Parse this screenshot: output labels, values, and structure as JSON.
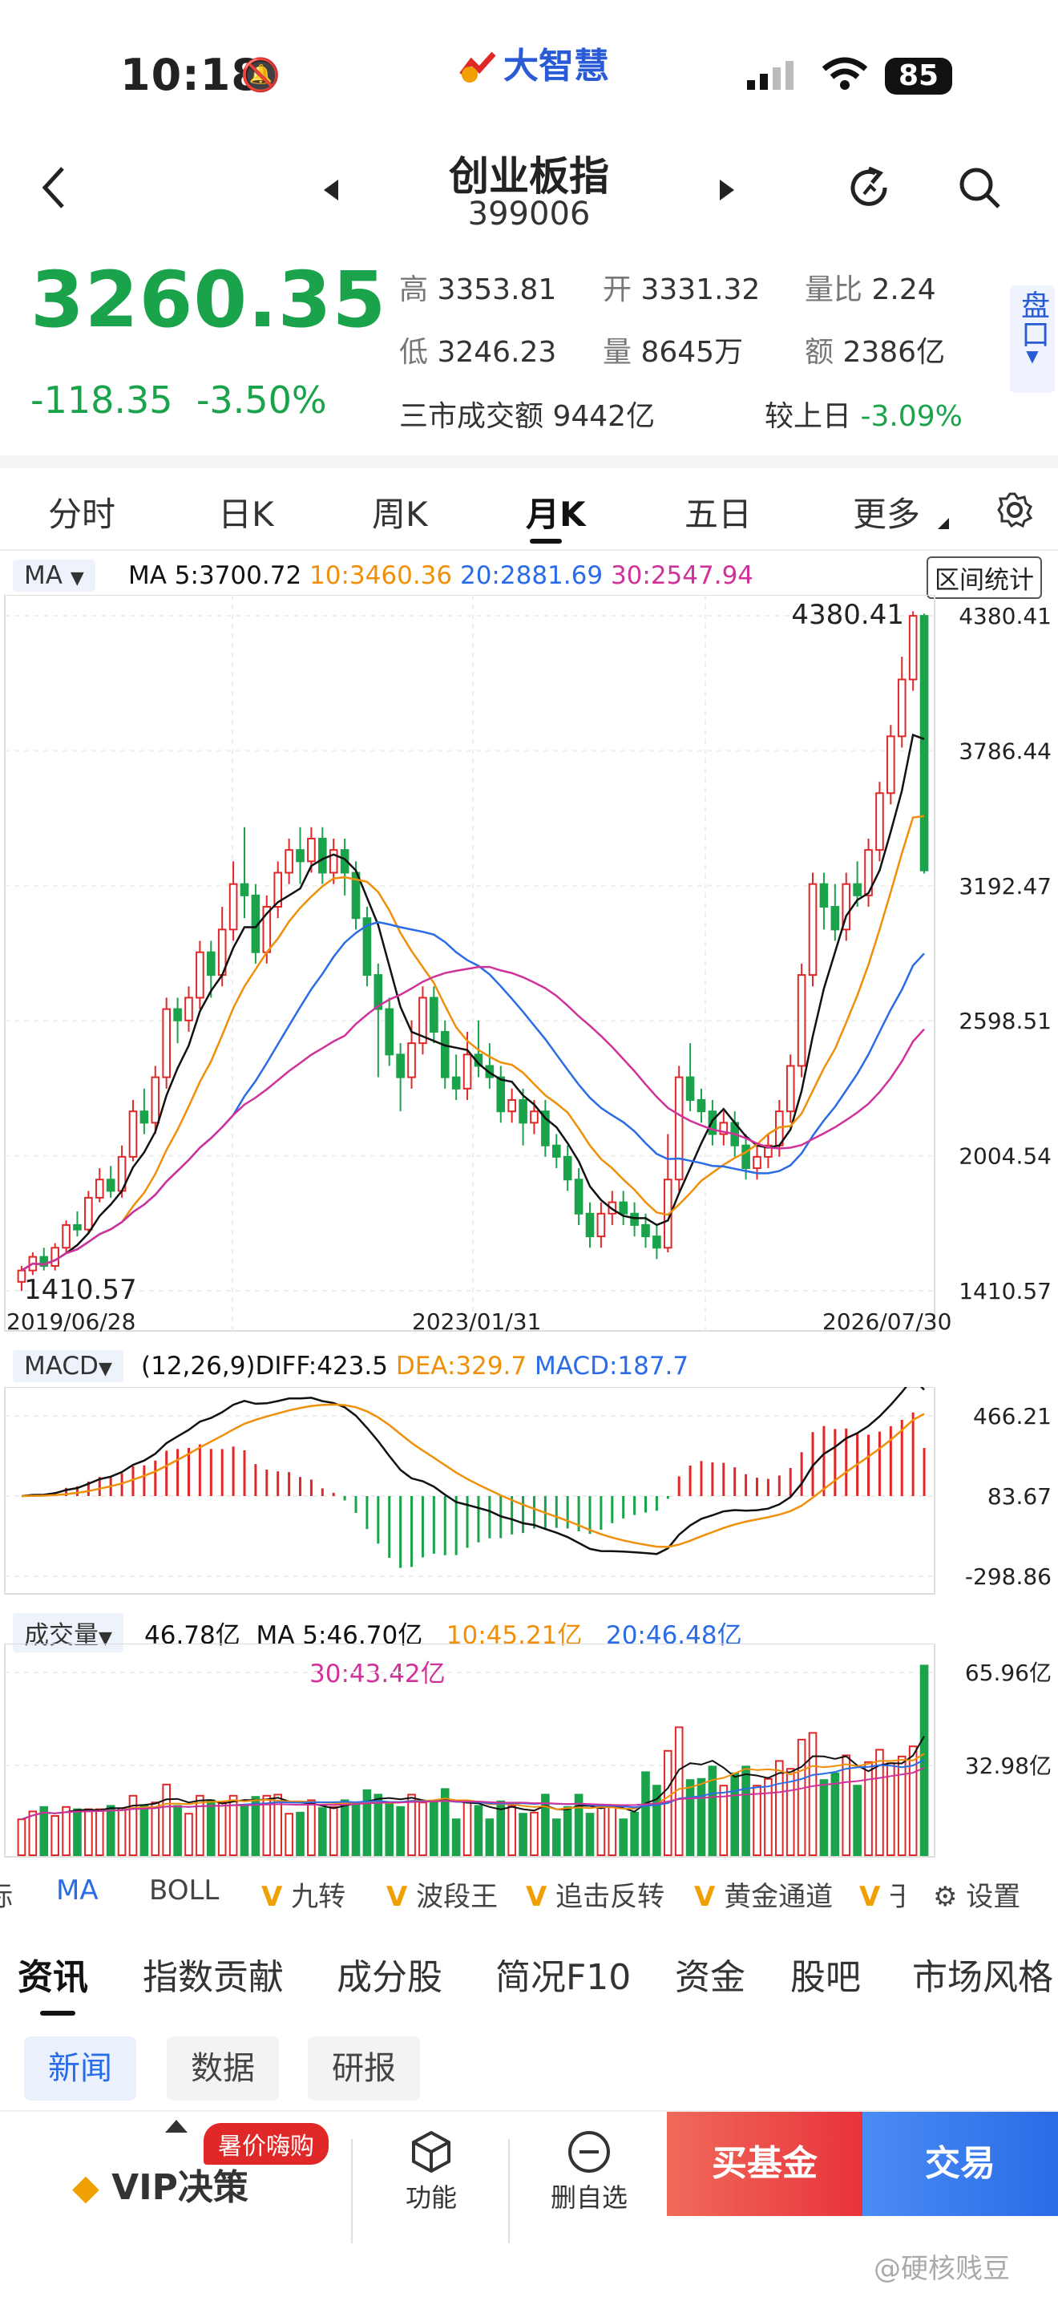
{
  "status": {
    "time": "10:18",
    "app_logo": "大智慧",
    "battery": "85"
  },
  "header": {
    "title": "创业板指",
    "code": "399006"
  },
  "quote": {
    "price": "3260.35",
    "change": "-118.35",
    "change_pct": "-3.50%",
    "stats": [
      {
        "label": "高",
        "value": "3353.81"
      },
      {
        "label": "开",
        "value": "3331.32"
      },
      {
        "label": "量比",
        "value": "2.24"
      },
      {
        "label": "低",
        "value": "3246.23"
      },
      {
        "label": "量",
        "value": "8645万"
      },
      {
        "label": "额",
        "value": "2386亿"
      }
    ],
    "market_turnover_label": "三市成交额",
    "market_turnover_value": "9442亿",
    "vs_yesterday_label": "较上日",
    "vs_yesterday_value": "-3.09%",
    "pankou_label": "盘口"
  },
  "chart_tabs": [
    "分时",
    "日K",
    "周K",
    "月K",
    "五日",
    "更多"
  ],
  "active_tab": "月K",
  "ma_legend": {
    "selector": "MA",
    "ma5": "MA 5:3700.72",
    "ma10": "10:3460.36",
    "ma20": "20:2881.69",
    "ma30": "30:2547.94",
    "stats_button": "区间统计"
  },
  "colors": {
    "up": "#e02828",
    "down": "#1aa34a",
    "ma5": "#111111",
    "ma10": "#f0900a",
    "ma20": "#2a6be6",
    "ma30": "#d0329a"
  },
  "price_axis": [
    "4380.41",
    "3786.44",
    "3192.47",
    "2598.51",
    "2004.54",
    "1410.57"
  ],
  "max_label": "4380.41",
  "min_label": "1410.57",
  "date_axis": [
    "2019/06/28",
    "2023/01/31",
    "2026/07/30"
  ],
  "macd": {
    "selector": "MACD",
    "params": "(12,26,9)DIFF:423.5",
    "dea": "DEA:329.7",
    "macd": "MACD:187.7",
    "axis": [
      "466.21",
      "83.67",
      "-298.86"
    ]
  },
  "volume": {
    "selector": "成交量",
    "value": "46.78亿",
    "ma5": "MA 5:46.70亿",
    "ma10": "10:45.21亿",
    "ma20": "20:46.48亿",
    "ma30": "30:43.42亿",
    "axis": [
      "65.96亿",
      "32.98亿"
    ]
  },
  "chart_data": {
    "type": "candlestick",
    "x_range": [
      "2019/06/28",
      "2026/07/30"
    ],
    "y_range": [
      1410.57,
      4380.41
    ],
    "candles": [
      [
        1450,
        1500,
        1410,
        1520
      ],
      [
        1500,
        1560,
        1480,
        1580
      ],
      [
        1560,
        1520,
        1500,
        1600
      ],
      [
        1520,
        1600,
        1500,
        1620
      ],
      [
        1600,
        1700,
        1580,
        1720
      ],
      [
        1700,
        1680,
        1650,
        1760
      ],
      [
        1680,
        1820,
        1660,
        1850
      ],
      [
        1820,
        1900,
        1800,
        1950
      ],
      [
        1900,
        1850,
        1820,
        1960
      ],
      [
        1850,
        2000,
        1820,
        2050
      ],
      [
        2000,
        2200,
        1980,
        2250
      ],
      [
        2200,
        2150,
        2100,
        2300
      ],
      [
        2150,
        2350,
        2100,
        2400
      ],
      [
        2350,
        2650,
        2300,
        2700
      ],
      [
        2650,
        2600,
        2500,
        2700
      ],
      [
        2600,
        2700,
        2550,
        2750
      ],
      [
        2700,
        2900,
        2650,
        2950
      ],
      [
        2900,
        2800,
        2700,
        2950
      ],
      [
        2800,
        3000,
        2750,
        3100
      ],
      [
        3000,
        3200,
        2950,
        3300
      ],
      [
        3200,
        3150,
        3050,
        3450
      ],
      [
        3150,
        2900,
        2850,
        3200
      ],
      [
        2900,
        3100,
        2850,
        3150
      ],
      [
        3100,
        3250,
        3050,
        3300
      ],
      [
        3250,
        3350,
        3200,
        3400
      ],
      [
        3350,
        3300,
        3200,
        3450
      ],
      [
        3300,
        3400,
        3250,
        3450
      ],
      [
        3400,
        3250,
        3200,
        3450
      ],
      [
        3250,
        3350,
        3200,
        3400
      ],
      [
        3350,
        3250,
        3150,
        3400
      ],
      [
        3250,
        3050,
        3000,
        3300
      ],
      [
        3050,
        2800,
        2750,
        3100
      ],
      [
        2800,
        2650,
        2350,
        2850
      ],
      [
        2650,
        2450,
        2400,
        2700
      ],
      [
        2450,
        2350,
        2200,
        2500
      ],
      [
        2350,
        2500,
        2300,
        2600
      ],
      [
        2500,
        2700,
        2450,
        2750
      ],
      [
        2700,
        2550,
        2500,
        2750
      ],
      [
        2550,
        2350,
        2300,
        2600
      ],
      [
        2350,
        2300,
        2250,
        2450
      ],
      [
        2300,
        2450,
        2250,
        2550
      ],
      [
        2450,
        2400,
        2350,
        2600
      ],
      [
        2400,
        2350,
        2300,
        2500
      ],
      [
        2350,
        2200,
        2150,
        2400
      ],
      [
        2200,
        2250,
        2150,
        2300
      ],
      [
        2250,
        2150,
        2050,
        2300
      ],
      [
        2150,
        2200,
        2100,
        2250
      ],
      [
        2200,
        2050,
        2000,
        2250
      ],
      [
        2050,
        2000,
        1950,
        2100
      ],
      [
        2000,
        1900,
        1850,
        2050
      ],
      [
        1900,
        1750,
        1700,
        1950
      ],
      [
        1750,
        1650,
        1600,
        1800
      ],
      [
        1650,
        1750,
        1600,
        1800
      ],
      [
        1750,
        1800,
        1700,
        1850
      ],
      [
        1800,
        1750,
        1700,
        1850
      ],
      [
        1750,
        1700,
        1650,
        1800
      ],
      [
        1700,
        1650,
        1600,
        1750
      ],
      [
        1650,
        1600,
        1550,
        1700
      ],
      [
        1600,
        1900,
        1580,
        2100
      ],
      [
        1900,
        2350,
        1850,
        2400
      ],
      [
        2350,
        2250,
        2200,
        2500
      ],
      [
        2250,
        2200,
        2150,
        2300
      ],
      [
        2200,
        2100,
        2050,
        2250
      ],
      [
        2100,
        2150,
        2050,
        2200
      ],
      [
        2150,
        2050,
        2000,
        2200
      ],
      [
        2050,
        1950,
        1900,
        2100
      ],
      [
        1950,
        2000,
        1900,
        2050
      ],
      [
        2000,
        2050,
        1950,
        2100
      ],
      [
        2050,
        2200,
        2000,
        2250
      ],
      [
        2200,
        2400,
        2150,
        2450
      ],
      [
        2400,
        2800,
        2350,
        2850
      ],
      [
        2800,
        3200,
        2750,
        3250
      ],
      [
        3200,
        3100,
        3000,
        3250
      ],
      [
        3100,
        3000,
        2950,
        3200
      ],
      [
        3000,
        3200,
        2950,
        3250
      ],
      [
        3200,
        3150,
        3100,
        3300
      ],
      [
        3150,
        3350,
        3100,
        3400
      ],
      [
        3350,
        3600,
        3300,
        3650
      ],
      [
        3600,
        3850,
        3550,
        3900
      ],
      [
        3850,
        4100,
        3800,
        4200
      ],
      [
        4100,
        4380,
        4050,
        4400
      ],
      [
        4380,
        3260,
        3246,
        4390
      ]
    ],
    "ma_series": [
      {
        "name": "MA5",
        "end": 3700.72
      },
      {
        "name": "MA10",
        "end": 3460.36
      },
      {
        "name": "MA20",
        "end": 2881.69
      },
      {
        "name": "MA30",
        "end": 2547.94
      }
    ]
  },
  "indicator_row": [
    "标",
    "MA",
    "BOLL",
    "九转",
    "波段王",
    "追击反转",
    "黄金通道",
    "于"
  ],
  "settings_label": "设置",
  "news_tabs": [
    "资讯",
    "指数贡献",
    "成分股",
    "简况F10",
    "资金",
    "股吧",
    "市场风格"
  ],
  "news_chips": [
    "新闻",
    "数据",
    "研报"
  ],
  "bottom": {
    "vip": "VIP决策",
    "promo": "暑价嗨购",
    "func": "功能",
    "remove": "删自选",
    "buy_fund": "买基金",
    "trade": "交易",
    "watermark": "@硬核贱豆"
  }
}
